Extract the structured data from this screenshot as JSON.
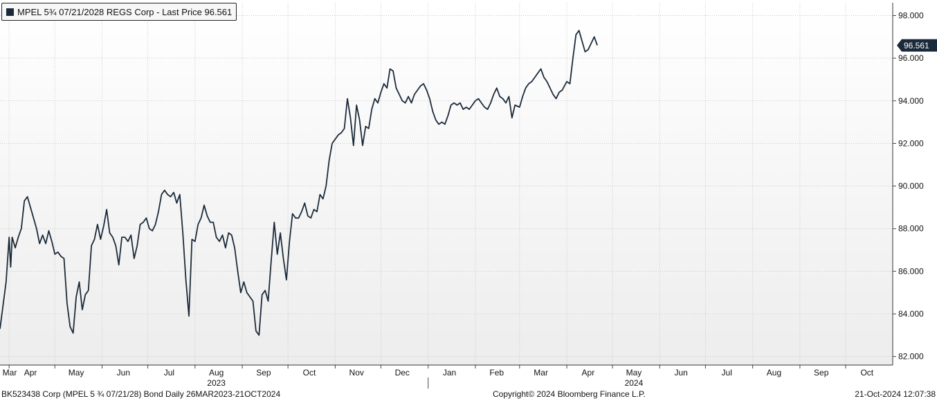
{
  "legend": {
    "text": "MPEL 5¾ 07/21/2028 REGS Corp - Last Price 96.561"
  },
  "last_price_tag": "96.561",
  "footer": {
    "left": "BK523438 Corp (MPEL 5 ¾ 07/21/28) Bond  Daily 26MAR2023-21OCT2024",
    "center": "Copyright© 2024 Bloomberg Finance L.P.",
    "right": "21-Oct-2024 12:07:38"
  },
  "colors": {
    "line": "#1b2a3a",
    "tag_bg": "#1b2a3a",
    "tag_text": "#ffffff",
    "grid": "#c8c8c8"
  },
  "chart_data": {
    "type": "line",
    "ylim": [
      81.6,
      98.6
    ],
    "y_ticks": [
      "98.000",
      "96.000",
      "94.000",
      "92.000",
      "90.000",
      "88.000",
      "86.000",
      "84.000",
      "82.000"
    ],
    "y_tick_values": [
      98,
      96,
      94,
      92,
      90,
      88,
      86,
      84,
      82
    ],
    "x_months": [
      {
        "label": "Mar",
        "date": "2023-03-15"
      },
      {
        "label": "Apr",
        "date": "2023-04-15"
      },
      {
        "label": "May",
        "date": "2023-05-15"
      },
      {
        "label": "Jun",
        "date": "2023-06-15"
      },
      {
        "label": "Jul",
        "date": "2023-07-15"
      },
      {
        "label": "Aug",
        "date": "2023-08-15"
      },
      {
        "label": "Sep",
        "date": "2023-09-15"
      },
      {
        "label": "Oct",
        "date": "2023-10-15"
      },
      {
        "label": "Nov",
        "date": "2023-11-15"
      },
      {
        "label": "Dec",
        "date": "2023-12-15"
      },
      {
        "label": "Jan",
        "date": "2024-01-15"
      },
      {
        "label": "Feb",
        "date": "2024-02-15"
      },
      {
        "label": "Mar",
        "date": "2024-03-15"
      },
      {
        "label": "Apr",
        "date": "2024-04-15"
      },
      {
        "label": "May",
        "date": "2024-05-15"
      },
      {
        "label": "Jun",
        "date": "2024-06-15"
      },
      {
        "label": "Jul",
        "date": "2024-07-15"
      },
      {
        "label": "Aug",
        "date": "2024-08-15"
      },
      {
        "label": "Sep",
        "date": "2024-09-15"
      },
      {
        "label": "Oct",
        "date": "2024-10-15"
      }
    ],
    "x_years": [
      {
        "label": "2023",
        "date": "2023-08-15"
      },
      {
        "label": "2024",
        "date": "2024-05-15"
      }
    ],
    "x_range": [
      "2023-03-26",
      "2024-10-21"
    ],
    "series": [
      {
        "points": [
          [
            "2023-03-26",
            83.3
          ],
          [
            "2023-03-28",
            84.4
          ],
          [
            "2023-03-30",
            85.5
          ],
          [
            "2023-04-01",
            87.6
          ],
          [
            "2023-04-02",
            86.2
          ],
          [
            "2023-04-03",
            87.6
          ],
          [
            "2023-04-05",
            87.1
          ],
          [
            "2023-04-07",
            87.6
          ],
          [
            "2023-04-09",
            88.0
          ],
          [
            "2023-04-11",
            89.3
          ],
          [
            "2023-04-13",
            89.5
          ],
          [
            "2023-04-15",
            89.0
          ],
          [
            "2023-04-17",
            88.5
          ],
          [
            "2023-04-19",
            88.0
          ],
          [
            "2023-04-21",
            87.3
          ],
          [
            "2023-04-23",
            87.7
          ],
          [
            "2023-04-25",
            87.3
          ],
          [
            "2023-04-27",
            87.9
          ],
          [
            "2023-04-29",
            87.4
          ],
          [
            "2023-05-01",
            86.8
          ],
          [
            "2023-05-03",
            86.9
          ],
          [
            "2023-05-05",
            86.7
          ],
          [
            "2023-05-07",
            86.6
          ],
          [
            "2023-05-09",
            84.5
          ],
          [
            "2023-05-11",
            83.4
          ],
          [
            "2023-05-13",
            83.1
          ],
          [
            "2023-05-15",
            84.8
          ],
          [
            "2023-05-17",
            85.5
          ],
          [
            "2023-05-19",
            84.2
          ],
          [
            "2023-05-21",
            84.9
          ],
          [
            "2023-05-23",
            85.1
          ],
          [
            "2023-05-25",
            87.2
          ],
          [
            "2023-05-27",
            87.5
          ],
          [
            "2023-05-29",
            88.2
          ],
          [
            "2023-05-31",
            87.5
          ],
          [
            "2023-06-02",
            88.1
          ],
          [
            "2023-06-04",
            88.9
          ],
          [
            "2023-06-06",
            87.8
          ],
          [
            "2023-06-08",
            87.6
          ],
          [
            "2023-06-10",
            87.2
          ],
          [
            "2023-06-12",
            86.3
          ],
          [
            "2023-06-14",
            87.6
          ],
          [
            "2023-06-16",
            87.6
          ],
          [
            "2023-06-18",
            87.4
          ],
          [
            "2023-06-20",
            87.7
          ],
          [
            "2023-06-22",
            86.6
          ],
          [
            "2023-06-24",
            87.2
          ],
          [
            "2023-06-26",
            88.2
          ],
          [
            "2023-06-28",
            88.3
          ],
          [
            "2023-06-30",
            88.5
          ],
          [
            "2023-07-02",
            88.0
          ],
          [
            "2023-07-04",
            87.9
          ],
          [
            "2023-07-06",
            88.2
          ],
          [
            "2023-07-08",
            88.8
          ],
          [
            "2023-07-10",
            89.6
          ],
          [
            "2023-07-12",
            89.8
          ],
          [
            "2023-07-14",
            89.6
          ],
          [
            "2023-07-16",
            89.5
          ],
          [
            "2023-07-18",
            89.7
          ],
          [
            "2023-07-20",
            89.2
          ],
          [
            "2023-07-22",
            89.6
          ],
          [
            "2023-07-24",
            87.8
          ],
          [
            "2023-07-26",
            85.6
          ],
          [
            "2023-07-28",
            83.9
          ],
          [
            "2023-07-30",
            87.5
          ],
          [
            "2023-08-01",
            87.4
          ],
          [
            "2023-08-03",
            88.2
          ],
          [
            "2023-08-05",
            88.5
          ],
          [
            "2023-08-07",
            89.1
          ],
          [
            "2023-08-09",
            88.6
          ],
          [
            "2023-08-11",
            88.3
          ],
          [
            "2023-08-13",
            88.3
          ],
          [
            "2023-08-15",
            87.6
          ],
          [
            "2023-08-17",
            87.4
          ],
          [
            "2023-08-19",
            87.7
          ],
          [
            "2023-08-21",
            87.1
          ],
          [
            "2023-08-23",
            87.8
          ],
          [
            "2023-08-25",
            87.7
          ],
          [
            "2023-08-27",
            87.1
          ],
          [
            "2023-08-29",
            86.0
          ],
          [
            "2023-08-31",
            85.0
          ],
          [
            "2023-09-02",
            85.5
          ],
          [
            "2023-09-04",
            85.0
          ],
          [
            "2023-09-06",
            84.8
          ],
          [
            "2023-09-08",
            84.6
          ],
          [
            "2023-09-10",
            83.2
          ],
          [
            "2023-09-12",
            83.0
          ],
          [
            "2023-09-14",
            84.9
          ],
          [
            "2023-09-16",
            85.1
          ],
          [
            "2023-09-18",
            84.6
          ],
          [
            "2023-09-20",
            86.5
          ],
          [
            "2023-09-22",
            88.3
          ],
          [
            "2023-09-24",
            86.8
          ],
          [
            "2023-09-26",
            87.8
          ],
          [
            "2023-09-28",
            86.6
          ],
          [
            "2023-09-30",
            85.6
          ],
          [
            "2023-10-02",
            87.4
          ],
          [
            "2023-10-04",
            88.7
          ],
          [
            "2023-10-06",
            88.5
          ],
          [
            "2023-10-08",
            88.5
          ],
          [
            "2023-10-10",
            88.8
          ],
          [
            "2023-10-12",
            89.2
          ],
          [
            "2023-10-14",
            88.6
          ],
          [
            "2023-10-16",
            88.5
          ],
          [
            "2023-10-18",
            88.9
          ],
          [
            "2023-10-20",
            88.8
          ],
          [
            "2023-10-22",
            89.6
          ],
          [
            "2023-10-24",
            89.4
          ],
          [
            "2023-10-26",
            90.0
          ],
          [
            "2023-10-28",
            91.2
          ],
          [
            "2023-10-30",
            92.0
          ],
          [
            "2023-11-01",
            92.2
          ],
          [
            "2023-11-03",
            92.4
          ],
          [
            "2023-11-05",
            92.5
          ],
          [
            "2023-11-07",
            92.7
          ],
          [
            "2023-11-09",
            94.1
          ],
          [
            "2023-11-11",
            93.2
          ],
          [
            "2023-11-13",
            91.9
          ],
          [
            "2023-11-15",
            93.8
          ],
          [
            "2023-11-17",
            93.1
          ],
          [
            "2023-11-19",
            91.9
          ],
          [
            "2023-11-21",
            92.8
          ],
          [
            "2023-11-23",
            92.7
          ],
          [
            "2023-11-25",
            93.6
          ],
          [
            "2023-11-27",
            94.1
          ],
          [
            "2023-11-29",
            93.9
          ],
          [
            "2023-12-01",
            94.4
          ],
          [
            "2023-12-03",
            94.8
          ],
          [
            "2023-12-05",
            94.6
          ],
          [
            "2023-12-07",
            95.5
          ],
          [
            "2023-12-09",
            95.4
          ],
          [
            "2023-12-11",
            94.6
          ],
          [
            "2023-12-13",
            94.3
          ],
          [
            "2023-12-15",
            94.0
          ],
          [
            "2023-12-17",
            93.9
          ],
          [
            "2023-12-19",
            94.2
          ],
          [
            "2023-12-21",
            93.9
          ],
          [
            "2023-12-23",
            94.3
          ],
          [
            "2023-12-25",
            94.5
          ],
          [
            "2023-12-27",
            94.7
          ],
          [
            "2023-12-29",
            94.8
          ],
          [
            "2023-12-31",
            94.5
          ],
          [
            "2024-01-02",
            94.1
          ],
          [
            "2024-01-04",
            93.5
          ],
          [
            "2024-01-06",
            93.1
          ],
          [
            "2024-01-08",
            92.9
          ],
          [
            "2024-01-10",
            93.0
          ],
          [
            "2024-01-12",
            92.9
          ],
          [
            "2024-01-14",
            93.3
          ],
          [
            "2024-01-16",
            93.8
          ],
          [
            "2024-01-18",
            93.9
          ],
          [
            "2024-01-20",
            93.8
          ],
          [
            "2024-01-22",
            93.9
          ],
          [
            "2024-01-24",
            93.6
          ],
          [
            "2024-01-26",
            93.7
          ],
          [
            "2024-01-28",
            93.6
          ],
          [
            "2024-01-30",
            93.8
          ],
          [
            "2024-02-01",
            94.0
          ],
          [
            "2024-02-03",
            94.1
          ],
          [
            "2024-02-05",
            93.9
          ],
          [
            "2024-02-07",
            93.7
          ],
          [
            "2024-02-09",
            93.6
          ],
          [
            "2024-02-11",
            93.9
          ],
          [
            "2024-02-13",
            94.3
          ],
          [
            "2024-02-15",
            94.6
          ],
          [
            "2024-02-17",
            94.2
          ],
          [
            "2024-02-19",
            94.1
          ],
          [
            "2024-02-21",
            93.9
          ],
          [
            "2024-02-23",
            94.2
          ],
          [
            "2024-02-25",
            93.2
          ],
          [
            "2024-02-27",
            93.8
          ],
          [
            "2024-03-01",
            93.7
          ],
          [
            "2024-03-03",
            94.2
          ],
          [
            "2024-03-05",
            94.6
          ],
          [
            "2024-03-07",
            94.8
          ],
          [
            "2024-03-09",
            94.9
          ],
          [
            "2024-03-11",
            95.1
          ],
          [
            "2024-03-13",
            95.3
          ],
          [
            "2024-03-15",
            95.5
          ],
          [
            "2024-03-17",
            95.1
          ],
          [
            "2024-03-19",
            94.9
          ],
          [
            "2024-03-21",
            94.6
          ],
          [
            "2024-03-23",
            94.3
          ],
          [
            "2024-03-25",
            94.1
          ],
          [
            "2024-03-27",
            94.4
          ],
          [
            "2024-03-29",
            94.5
          ],
          [
            "2024-04-01",
            94.9
          ],
          [
            "2024-04-03",
            94.8
          ],
          [
            "2024-04-05",
            96.0
          ],
          [
            "2024-04-07",
            97.1
          ],
          [
            "2024-04-09",
            97.3
          ],
          [
            "2024-04-11",
            96.8
          ],
          [
            "2024-04-13",
            96.3
          ],
          [
            "2024-04-15",
            96.4
          ],
          [
            "2024-04-17",
            96.7
          ],
          [
            "2024-04-19",
            97.0
          ],
          [
            "2024-04-21",
            96.6
          ]
        ]
      }
    ]
  }
}
